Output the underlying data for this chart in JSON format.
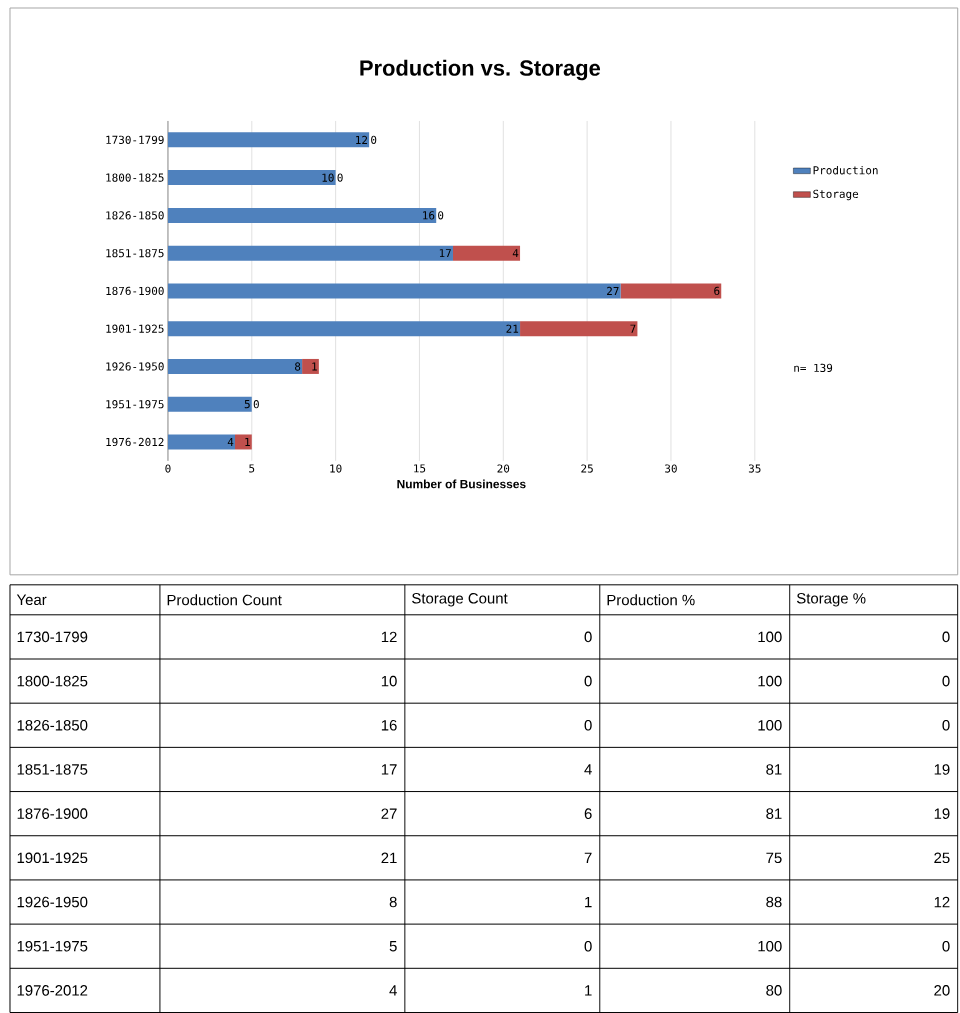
{
  "chart_data": {
    "type": "bar",
    "orientation": "horizontal",
    "stacked": true,
    "title": "Production vs. Storage",
    "xlabel": "Number of Businesses",
    "categories": [
      "1730-1799",
      "1800-1825",
      "1826-1850",
      "1851-1875",
      "1876-1900",
      "1901-1925",
      "1926-1950",
      "1951-1975",
      "1976-2012"
    ],
    "series": [
      {
        "name": "Production",
        "color": "#4f81bd",
        "values": [
          12,
          10,
          16,
          17,
          27,
          21,
          8,
          5,
          4
        ]
      },
      {
        "name": "Storage",
        "color": "#c0504d",
        "values": [
          0,
          0,
          0,
          4,
          6,
          7,
          1,
          0,
          1
        ]
      }
    ],
    "xlim": [
      0,
      35
    ],
    "xticks": [
      0,
      5,
      10,
      15,
      20,
      25,
      30,
      35
    ],
    "grid": "x",
    "legend": "right",
    "data_labels": true,
    "annotations": [
      "n= 139",
      "Year",
      "Production Count",
      "Storage Count",
      "Production %",
      "Storage %",
      "12",
      "0",
      "100",
      "0",
      "10",
      "0",
      "100",
      "0",
      "16",
      "0",
      "100",
      "0",
      "17",
      "4",
      "81",
      "19",
      "27",
      "6",
      "81",
      "19",
      "21",
      "7",
      "75",
      "25",
      "8",
      "1",
      "88",
      "12",
      "5",
      "0",
      "100",
      "0",
      "4",
      "1",
      "80",
      "20"
    ]
  }
}
